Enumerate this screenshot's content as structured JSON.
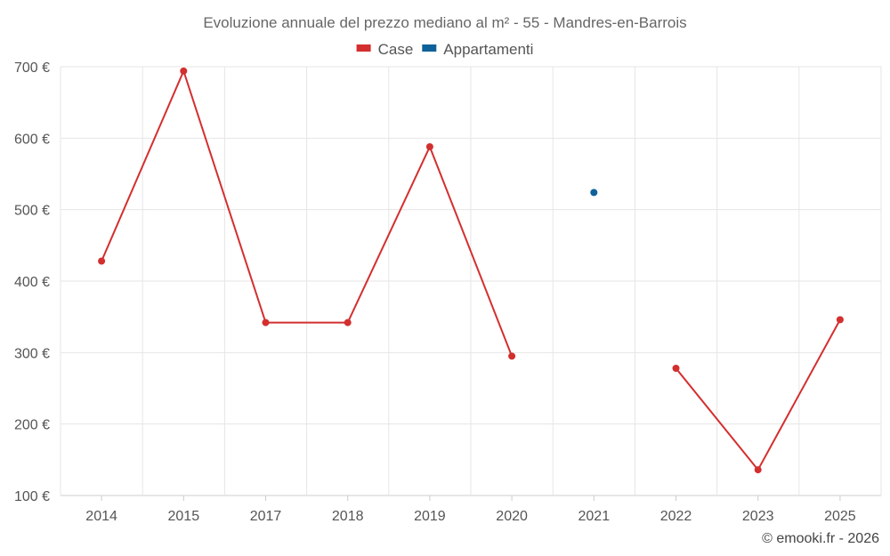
{
  "chart_data": {
    "type": "line",
    "title": "Evoluzione annuale del prezzo mediano al m² - 55 - Mandres-en-Barrois",
    "categories": [
      "2014",
      "2015",
      "2017",
      "2018",
      "2019",
      "2020",
      "2021",
      "2022",
      "2023",
      "2025"
    ],
    "y_ticks": [
      "100 €",
      "200 €",
      "300 €",
      "400 €",
      "500 €",
      "600 €",
      "700 €"
    ],
    "ylim": [
      100,
      700
    ],
    "grid": true,
    "legend_position": "top-center",
    "series": [
      {
        "name": "Case",
        "color": "#d32f2f",
        "values": [
          428,
          694,
          342,
          342,
          588,
          295,
          null,
          278,
          136,
          346
        ]
      },
      {
        "name": "Appartamenti",
        "color": "#0e6199",
        "values": [
          null,
          null,
          null,
          null,
          null,
          null,
          524,
          null,
          null,
          null
        ]
      }
    ]
  },
  "credit": "© emooki.fr - 2026"
}
